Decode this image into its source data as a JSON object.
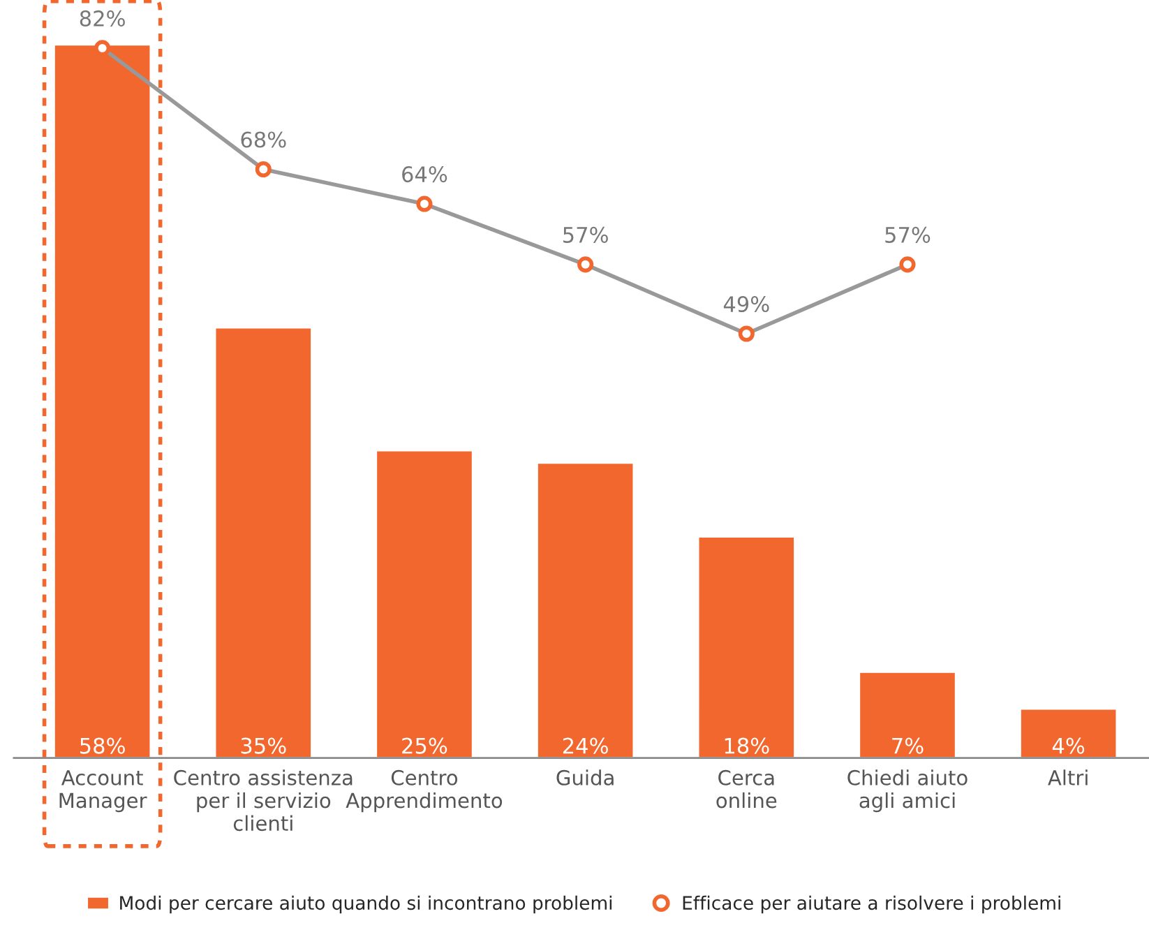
{
  "chart_data": {
    "type": "bar",
    "categories": [
      "Account\nManager",
      "Centro assistenza\nper il servizio\nclienti",
      "Centro\nApprendimento",
      "Guida",
      "Cerca\nonline",
      "Chiedi aiuto\nagli amici",
      "Altri"
    ],
    "series": [
      {
        "name": "Modi per cercare aiuto quando si incontrano problemi",
        "color": "#f2672d",
        "values": [
          58,
          35,
          25,
          24,
          18,
          7,
          4
        ],
        "value_labels": [
          "58%",
          "35%",
          "25%",
          "24%",
          "18%",
          "7%",
          "4%"
        ]
      },
      {
        "name": "Efficace per aiutare a risolvere i problemi",
        "type": "line",
        "axis": "y2",
        "color": "#999999",
        "marker": "circle",
        "values": [
          82,
          68,
          64,
          57,
          49,
          57,
          null
        ],
        "value_labels": [
          "82%",
          "68%",
          "64%",
          "57%",
          "49%",
          "57%",
          null
        ]
      }
    ],
    "relative": false,
    "legend": "bottom",
    "grid": false
  }
}
